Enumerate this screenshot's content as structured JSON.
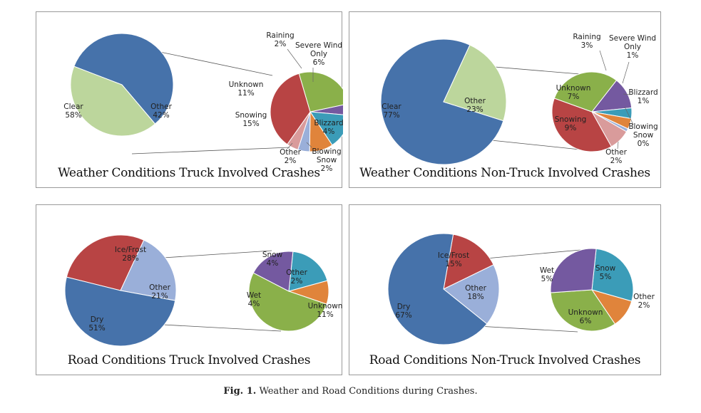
{
  "caption": {
    "label": "Fig. 1.",
    "text": "Weather and Road Conditions during Crashes."
  },
  "chart_data": [
    {
      "type": "pie",
      "title": "Weather Conditions Truck Involved Crashes",
      "main": [
        {
          "name": "Clear",
          "value": 58,
          "label": "58%",
          "color": "#4672aa"
        },
        {
          "name": "Other",
          "value": 42,
          "label": "42%",
          "color": "#bcd69c"
        }
      ],
      "detail": [
        {
          "name": "Raining",
          "value": 2,
          "label": "2%",
          "color": "#7459a0"
        },
        {
          "name": "Severe Wind Only",
          "value": 6,
          "label": "6%",
          "color": "#3b9cb8"
        },
        {
          "name": "Blizzard",
          "value": 4,
          "label": "4%",
          "color": "#e0843b"
        },
        {
          "name": "Blowing Snow",
          "value": 2,
          "label": "2%",
          "color": "#9aafd9"
        },
        {
          "name": "Other",
          "value": 2,
          "label": "2%",
          "color": "#d99b9b"
        },
        {
          "name": "Snowing",
          "value": 15,
          "label": "15%",
          "color": "#b84444"
        },
        {
          "name": "Unknown",
          "value": 11,
          "label": "11%",
          "color": "#8ab04a"
        }
      ]
    },
    {
      "type": "pie",
      "title": "Weather Conditions Non-Truck Involved Crashes",
      "main": [
        {
          "name": "Clear",
          "value": 77,
          "label": "77%",
          "color": "#4672aa"
        },
        {
          "name": "Other",
          "value": 23,
          "label": "23%",
          "color": "#bcd69c"
        }
      ],
      "detail": [
        {
          "name": "Raining",
          "value": 3,
          "label": "3%",
          "color": "#7459a0"
        },
        {
          "name": "Severe Wind Only",
          "value": 1,
          "label": "1%",
          "color": "#3b9cb8"
        },
        {
          "name": "Blizzard",
          "value": 1,
          "label": "1%",
          "color": "#e0843b"
        },
        {
          "name": "Blowing Snow",
          "value": 0,
          "label": "0%",
          "color": "#9aafd9"
        },
        {
          "name": "Other",
          "value": 2,
          "label": "2%",
          "color": "#d99b9b"
        },
        {
          "name": "Snowing",
          "value": 9,
          "label": "9%",
          "color": "#b84444"
        },
        {
          "name": "Unknown",
          "value": 7,
          "label": "7%",
          "color": "#8ab04a"
        }
      ]
    },
    {
      "type": "pie",
      "title": "Road Conditions Truck Involved Crashes",
      "main": [
        {
          "name": "Ice/Frost",
          "value": 28,
          "label": "28%",
          "color": "#b84444"
        },
        {
          "name": "Other",
          "value": 21,
          "label": "21%",
          "color": "#9aafd9"
        },
        {
          "name": "Dry",
          "value": 51,
          "label": "51%",
          "color": "#4672aa"
        }
      ],
      "detail": [
        {
          "name": "Snow",
          "value": 4,
          "label": "4%",
          "color": "#3b9cb8"
        },
        {
          "name": "Other",
          "value": 2,
          "label": "2%",
          "color": "#e0843b"
        },
        {
          "name": "Unknown",
          "value": 11,
          "label": "11%",
          "color": "#8ab04a"
        },
        {
          "name": "Wet",
          "value": 4,
          "label": "4%",
          "color": "#7459a0"
        }
      ]
    },
    {
      "type": "pie",
      "title": "Road Conditions Non-Truck Involved Crashes",
      "main": [
        {
          "name": "Ice/Frost",
          "value": 15,
          "label": "15%",
          "color": "#b84444"
        },
        {
          "name": "Other",
          "value": 18,
          "label": "18%",
          "color": "#9aafd9"
        },
        {
          "name": "Dry",
          "value": 67,
          "label": "67%",
          "color": "#4672aa"
        }
      ],
      "detail": [
        {
          "name": "Snow",
          "value": 5,
          "label": "5%",
          "color": "#3b9cb8"
        },
        {
          "name": "Other",
          "value": 2,
          "label": "2%",
          "color": "#e0843b"
        },
        {
          "name": "Unknown",
          "value": 6,
          "label": "6%",
          "color": "#8ab04a"
        },
        {
          "name": "Wet",
          "value": 5,
          "label": "5%",
          "color": "#7459a0"
        }
      ]
    }
  ]
}
